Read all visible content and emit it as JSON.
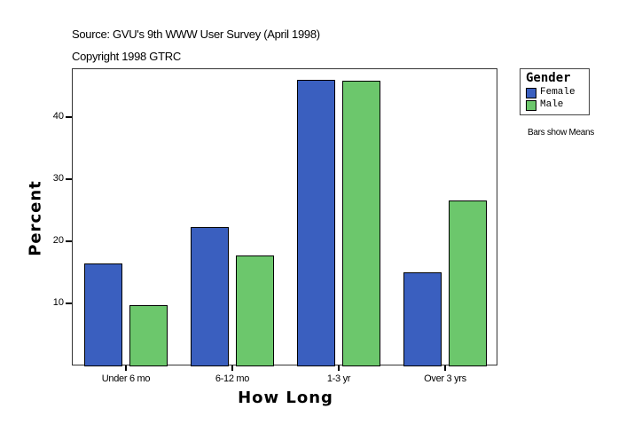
{
  "header": {
    "source": "Source: GVU's 9th WWW User Survey (April 1998)",
    "copyright": "Copyright 1998 GTRC"
  },
  "legend": {
    "title": "Gender",
    "items": [
      {
        "label": "Female",
        "color": "#3a5fbf"
      },
      {
        "label": "Male",
        "color": "#6cc76c"
      }
    ]
  },
  "note": "Bars show Means",
  "chart_data": {
    "type": "bar",
    "title": "",
    "subtitle": "Source: GVU's 9th WWW User Survey (April 1998) / Copyright 1998 GTRC",
    "xlabel": "How Long",
    "ylabel": "Percent",
    "categories": [
      "Under 6 mo",
      "6-12 mo",
      "1-3 yr",
      "Over 3 yrs"
    ],
    "series": [
      {
        "name": "Female",
        "color": "#3a5fbf",
        "values": [
          16.4,
          22.3,
          46.0,
          15.0
        ]
      },
      {
        "name": "Male",
        "color": "#6cc76c",
        "values": [
          9.7,
          17.7,
          45.9,
          26.6
        ]
      }
    ],
    "yticks": [
      10,
      20,
      30,
      40
    ],
    "ylim": [
      0,
      47.8
    ],
    "grid": false,
    "legend_position": "right",
    "annotation": "Bars show Means"
  }
}
